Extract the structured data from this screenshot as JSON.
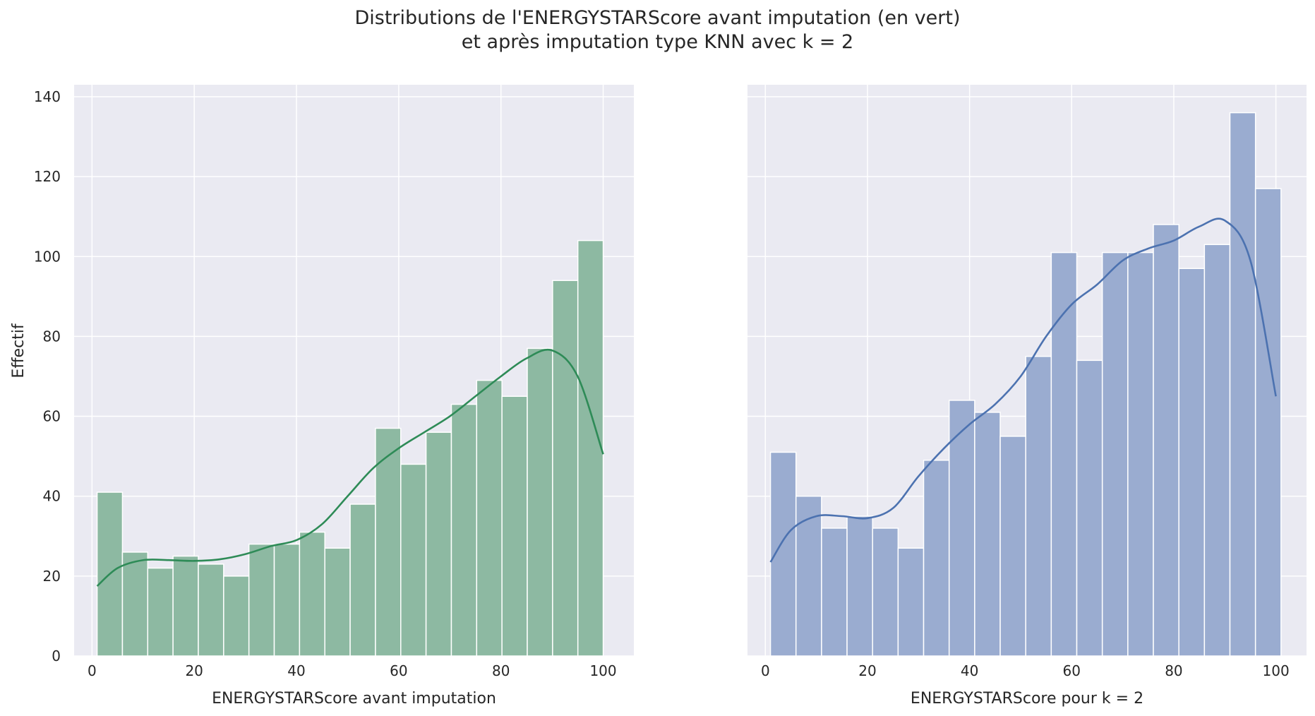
{
  "figure": {
    "title_line1": "Distributions de l'ENERGYSTARScore avant imputation (en vert)",
    "title_line2": "et après imputation type KNN avec k = 2",
    "ylabel": "Effectif"
  },
  "chart_data": [
    {
      "type": "bar",
      "subtype": "histogram with kde",
      "xlabel": "ENERGYSTARScore avant imputation",
      "ylabel": "Effectif",
      "xlim": [
        -3.5,
        106
      ],
      "ylim": [
        0,
        143
      ],
      "xticks": [
        0,
        20,
        40,
        60,
        80,
        100
      ],
      "yticks": [
        0,
        20,
        40,
        60,
        80,
        100,
        120,
        140
      ],
      "grid": true,
      "bar_color": "#8db9a2",
      "line_color": "#2e8b57",
      "bin_edges": [
        1,
        5.95,
        10.9,
        15.85,
        20.8,
        25.75,
        30.7,
        35.65,
        40.6,
        45.55,
        50.5,
        55.45,
        60.4,
        65.35,
        70.3,
        75.25,
        80.2,
        85.15,
        90.1,
        95.05,
        100
      ],
      "values": [
        41,
        26,
        22,
        25,
        23,
        20,
        28,
        28,
        31,
        27,
        38,
        57,
        48,
        56,
        63,
        69,
        65,
        77,
        94,
        104
      ],
      "kde": {
        "x": [
          1,
          5,
          10,
          15,
          20,
          25,
          30,
          35,
          40,
          45,
          50,
          55,
          60,
          65,
          70,
          75,
          80,
          85,
          90,
          95,
          100
        ],
        "y": [
          17.5,
          22,
          24,
          24,
          23.8,
          24.2,
          25.5,
          27.5,
          29,
          33,
          40,
          47,
          52,
          56,
          60,
          65,
          70,
          74.5,
          76.5,
          70,
          50.5
        ]
      }
    },
    {
      "type": "bar",
      "subtype": "histogram with kde",
      "xlabel": "ENERGYSTARScore pour k = 2",
      "ylabel": "",
      "xlim": [
        -3.5,
        106
      ],
      "ylim": [
        0,
        143
      ],
      "xticks": [
        0,
        20,
        40,
        60,
        80,
        100
      ],
      "yticks": [
        0,
        20,
        40,
        60,
        80,
        100,
        120,
        140
      ],
      "grid": true,
      "bar_color": "#9aacd0",
      "line_color": "#4c72b0",
      "bin_edges": [
        1,
        6,
        11,
        16,
        21,
        26,
        31,
        36,
        41,
        46,
        51,
        56,
        61,
        66,
        71,
        76,
        81,
        86,
        91,
        96,
        101
      ],
      "values": [
        51,
        40,
        32,
        35,
        32,
        27,
        49,
        64,
        61,
        55,
        75,
        101,
        74,
        101,
        101,
        108,
        97,
        103,
        136,
        117
      ],
      "kde": {
        "x": [
          1,
          5,
          10,
          15,
          20,
          25,
          30,
          35,
          40,
          45,
          50,
          55,
          60,
          65,
          70,
          75,
          80,
          85,
          90,
          95,
          100
        ],
        "y": [
          23.5,
          31.5,
          35,
          35,
          34.5,
          37,
          45,
          52,
          58,
          63,
          70,
          80,
          88,
          93,
          99,
          102,
          104,
          107.5,
          109,
          99,
          65
        ]
      }
    }
  ]
}
